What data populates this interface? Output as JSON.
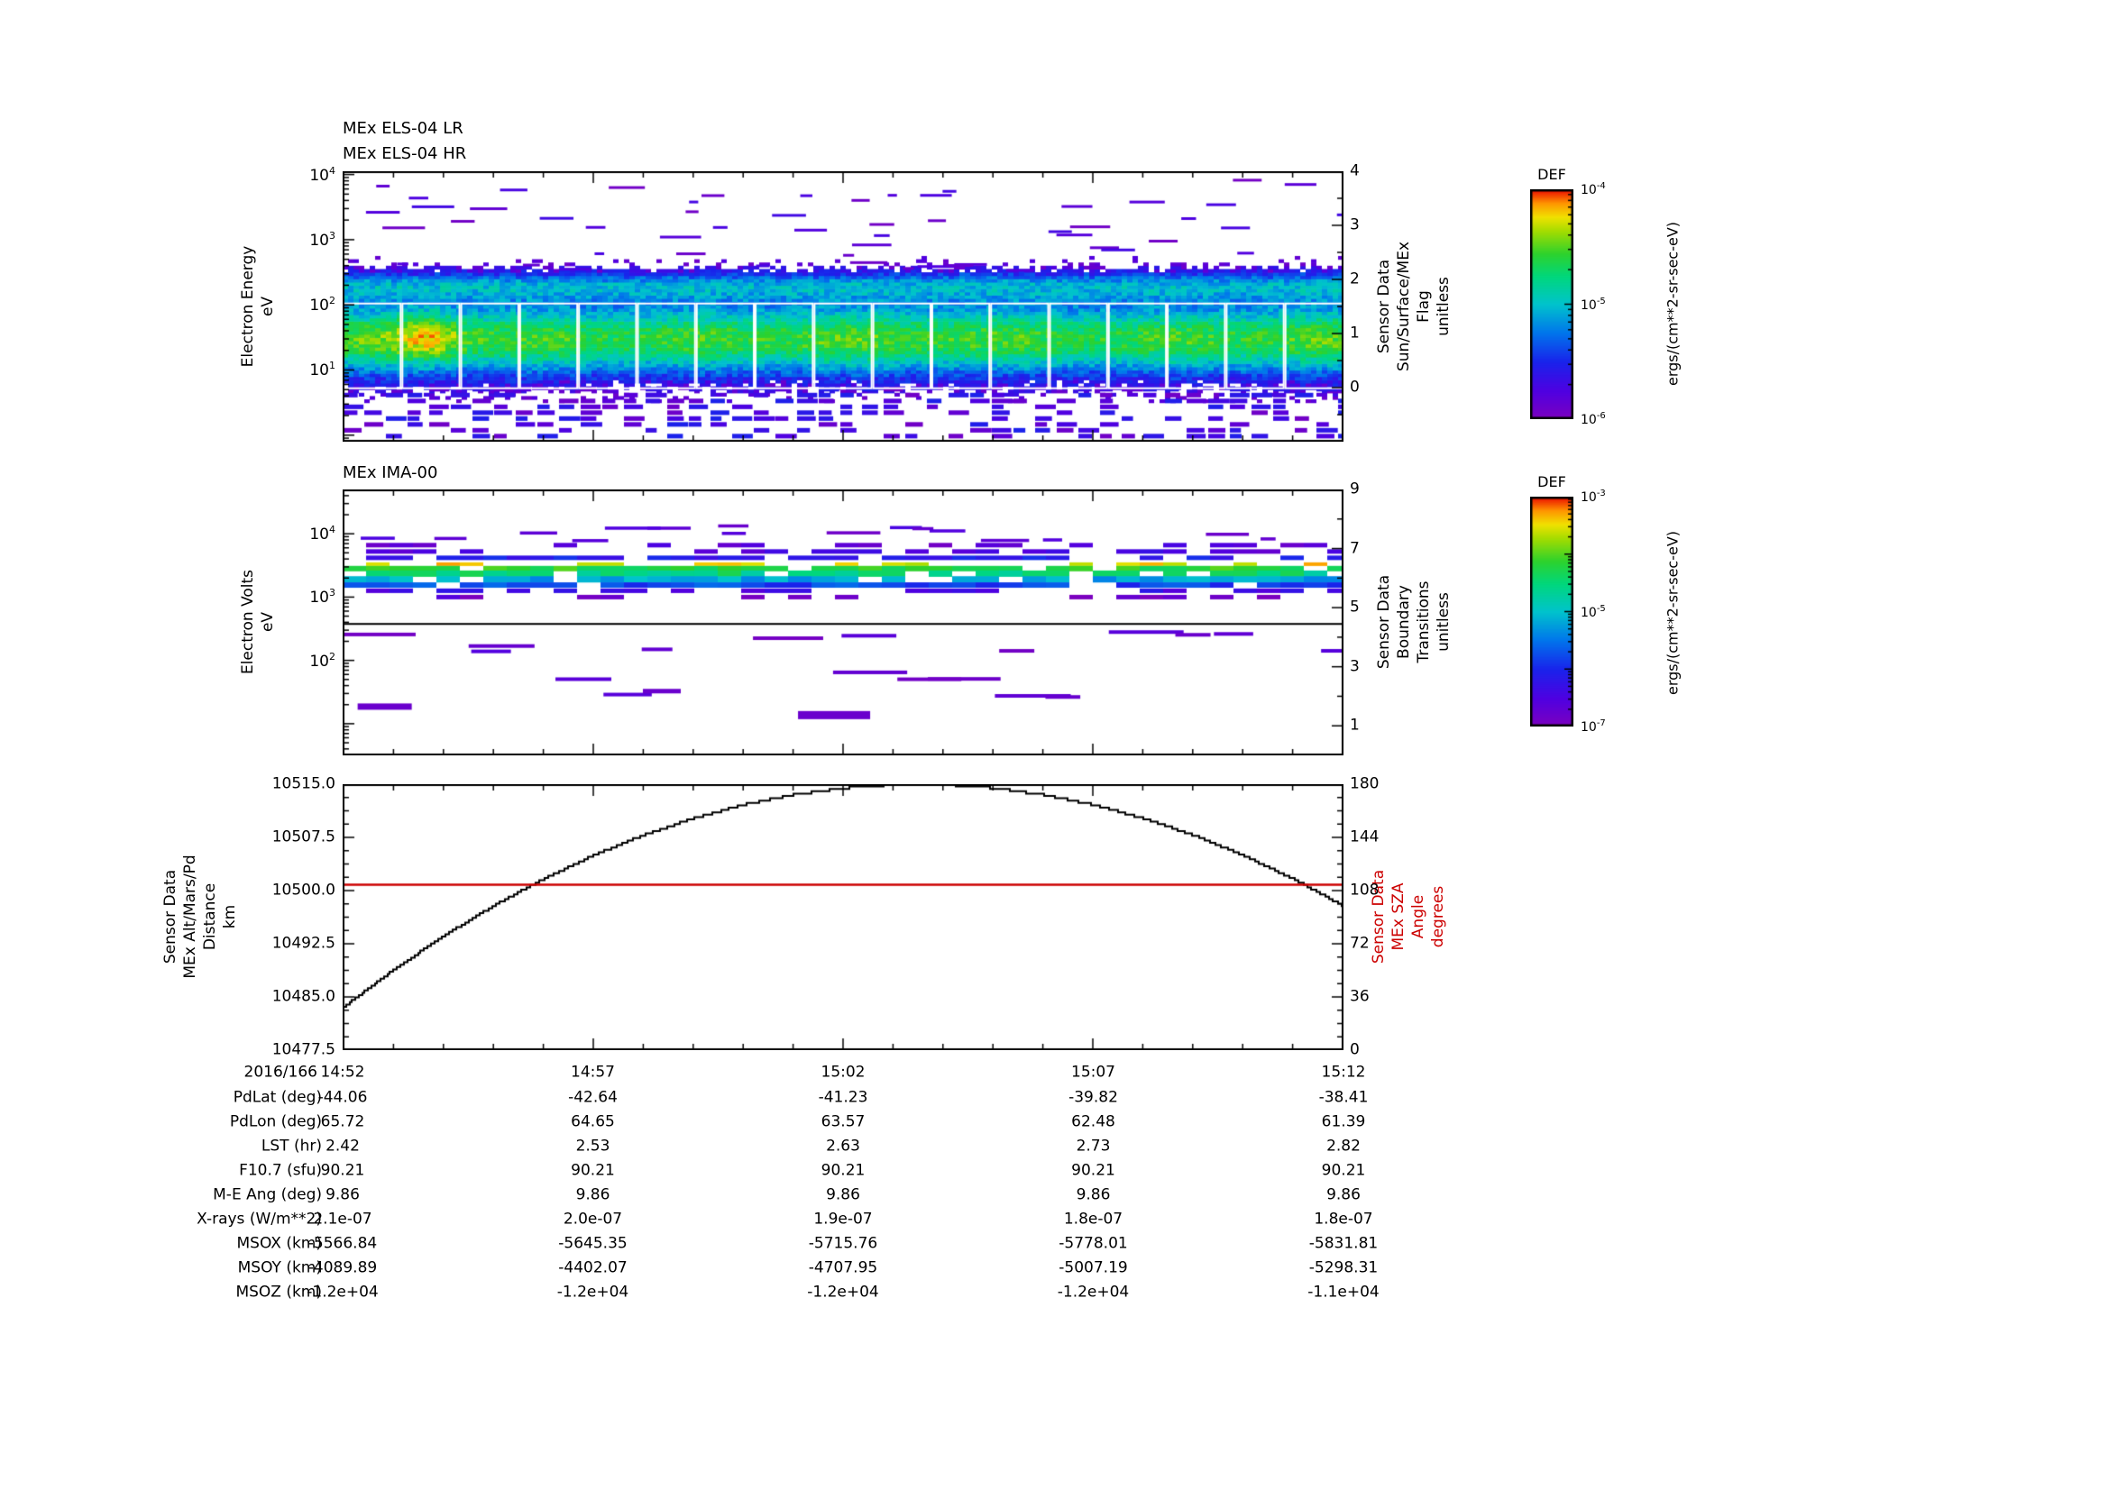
{
  "page": {
    "background": "#ffffff",
    "accent_red": "#cc0000"
  },
  "chart_data": [
    {
      "type": "heatmap",
      "titles": [
        "MEx ELS-04 LR",
        "MEx ELS-04 HR"
      ],
      "ylabel": "Electron Energy\neV",
      "y_scale": "log",
      "y_exp_range": [
        -0.1,
        4.05
      ],
      "y_tick_exponents": [
        1,
        2,
        3,
        4
      ],
      "x_tick_labels": [
        "14:52",
        "14:57",
        "15:02",
        "15:07",
        "15:12"
      ],
      "right_axis": {
        "label": "Sensor Data\nSun/Surface/MEx\nFlag\nunitless",
        "min": -1,
        "max": 4,
        "labeled": [
          0,
          1,
          2,
          3,
          4
        ]
      },
      "spectrum": {
        "main_band": {
          "center_exp": 1.45,
          "sigma_exp": 0.42,
          "peak": 0.72
        },
        "upper_band": {
          "center_exp": 2.28,
          "sigma_exp": 0.17,
          "peak": 0.38
        },
        "hotspot": {
          "x_frac": 0.085,
          "center_exp": 1.5,
          "boost": 0.18
        },
        "segments": 17,
        "upper_dash_count": 55,
        "lower_speckle_exp_range": [
          -0.05,
          0.72
        ]
      },
      "colorbar": {
        "title": "DEF",
        "tick_exponents": [
          -4,
          -5,
          -6
        ],
        "unit_label": "ergs/(cm**2-sr-sec-eV)"
      }
    },
    {
      "type": "heatmap",
      "titles": [
        "MEx IMA-00"
      ],
      "ylabel": "Electron Volts\neV",
      "y_scale": "log",
      "y_exp_range": [
        0.5,
        4.7
      ],
      "y_tick_exponents": [
        2,
        3,
        4
      ],
      "right_axis": {
        "label": "Sensor Data\nBoundary\nTransitions\nunitless",
        "min": 0,
        "max": 9,
        "labeled": [
          1,
          3,
          5,
          7,
          9
        ]
      },
      "black_line_exp": 2.59,
      "band_rows": [
        {
          "exp": 3.82,
          "color_t": 0.08,
          "density": 0.45,
          "h": 5
        },
        {
          "exp": 3.72,
          "color_t": 0.12,
          "density": 0.55,
          "h": 5
        },
        {
          "exp": 3.62,
          "color_t": 0.22,
          "density": 0.6,
          "h": 5
        },
        {
          "exp": 3.52,
          "color_t": 0.88,
          "density": 0.45,
          "h": 4
        },
        {
          "exp": 3.45,
          "color_t": 0.7,
          "density": 0.85,
          "h": 6
        },
        {
          "exp": 3.37,
          "color_t": 0.62,
          "density": 0.9,
          "h": 7
        },
        {
          "exp": 3.28,
          "color_t": 0.45,
          "density": 0.85,
          "h": 7
        },
        {
          "exp": 3.19,
          "color_t": 0.3,
          "density": 0.8,
          "h": 6
        },
        {
          "exp": 3.1,
          "color_t": 0.15,
          "density": 0.6,
          "h": 5
        },
        {
          "exp": 3.0,
          "color_t": 0.06,
          "density": 0.35,
          "h": 5
        }
      ],
      "upper_dashes": {
        "exp_range": [
          3.9,
          4.15
        ],
        "count": 16
      },
      "scatter_rows": [
        {
          "exp": 2.42,
          "count": 6
        },
        {
          "exp": 2.22,
          "count": 5
        },
        {
          "exp": 1.78,
          "count": 4
        },
        {
          "exp": 1.5,
          "count": 3
        }
      ],
      "thick_marks": [
        {
          "x_frac": 0.015,
          "exp": 1.32,
          "w": 60,
          "h": 7
        },
        {
          "x_frac": 0.455,
          "exp": 1.2,
          "w": 80,
          "h": 9
        },
        {
          "x_frac": 0.3,
          "exp": 1.55,
          "w": 42,
          "h": 5
        }
      ],
      "colorbar": {
        "title": "DEF",
        "tick_exponents": [
          -3,
          -5,
          -7
        ],
        "unit_label": "ergs/(cm**2-sr-sec-eV)"
      }
    },
    {
      "type": "line",
      "ylabel": "Sensor Data\nMEx Alt/Mars/Pd\nDistance\nkm",
      "y_min": 10477.5,
      "y_max": 10515.0,
      "y_tick_labels": [
        "10515.0",
        "10507.5",
        "10500.0",
        "10492.5",
        "10485.0",
        "10477.5"
      ],
      "right_axis": {
        "label": "Sensor Data\nMEx SZA\nAngle\ndegrees",
        "min": 0,
        "max": 180,
        "labeled": [
          180,
          144,
          108,
          72,
          36,
          0
        ],
        "color": "#cc0000"
      },
      "series": [
        {
          "name": "MEx Alt/Mars/Pd Distance (km)",
          "color": "#000000",
          "x_minutes": [
            0,
            1,
            2,
            3,
            4,
            5,
            6,
            7,
            8,
            9,
            10,
            11,
            12,
            13,
            14,
            15,
            16,
            17,
            18,
            19,
            20
          ],
          "values": [
            10483.52,
            10488.76,
            10493.52,
            10497.8,
            10501.61,
            10504.95,
            10507.8,
            10510.18,
            10512.09,
            10513.51,
            10514.46,
            10514.94,
            10514.94,
            10514.46,
            10513.51,
            10512.09,
            10510.18,
            10507.8,
            10504.95,
            10501.61,
            10497.8
          ]
        },
        {
          "name": "MEx SZA Angle (degrees)",
          "color": "#cc0000",
          "constant_value": 112
        }
      ]
    }
  ],
  "ephemeris": {
    "date_label": "2016/166",
    "columns": [
      "14:52",
      "14:57",
      "15:02",
      "15:07",
      "15:12"
    ],
    "rows": [
      {
        "label": "PdLat (deg)",
        "values": [
          "-44.06",
          "-42.64",
          "-41.23",
          "-39.82",
          "-38.41"
        ]
      },
      {
        "label": "PdLon (deg)",
        "values": [
          "65.72",
          "64.65",
          "63.57",
          "62.48",
          "61.39"
        ]
      },
      {
        "label": "LST (hr)",
        "values": [
          "2.42",
          "2.53",
          "2.63",
          "2.73",
          "2.82"
        ]
      },
      {
        "label": "F10.7 (sfu)",
        "values": [
          "90.21",
          "90.21",
          "90.21",
          "90.21",
          "90.21"
        ]
      },
      {
        "label": "M-E Ang (deg)",
        "values": [
          "9.86",
          "9.86",
          "9.86",
          "9.86",
          "9.86"
        ]
      },
      {
        "label": "X-rays (W/m**2)",
        "values": [
          "2.1e-07",
          "2.0e-07",
          "1.9e-07",
          "1.8e-07",
          "1.8e-07"
        ]
      },
      {
        "label": "MSOX (km)",
        "values": [
          "-5566.84",
          "-5645.35",
          "-5715.76",
          "-5778.01",
          "-5831.81"
        ]
      },
      {
        "label": "MSOY (km)",
        "values": [
          "-4089.89",
          "-4402.07",
          "-4707.95",
          "-5007.19",
          "-5298.31"
        ]
      },
      {
        "label": "MSOZ (km)",
        "values": [
          "-1.2e+04",
          "-1.2e+04",
          "-1.2e+04",
          "-1.2e+04",
          "-1.1e+04"
        ]
      }
    ]
  }
}
